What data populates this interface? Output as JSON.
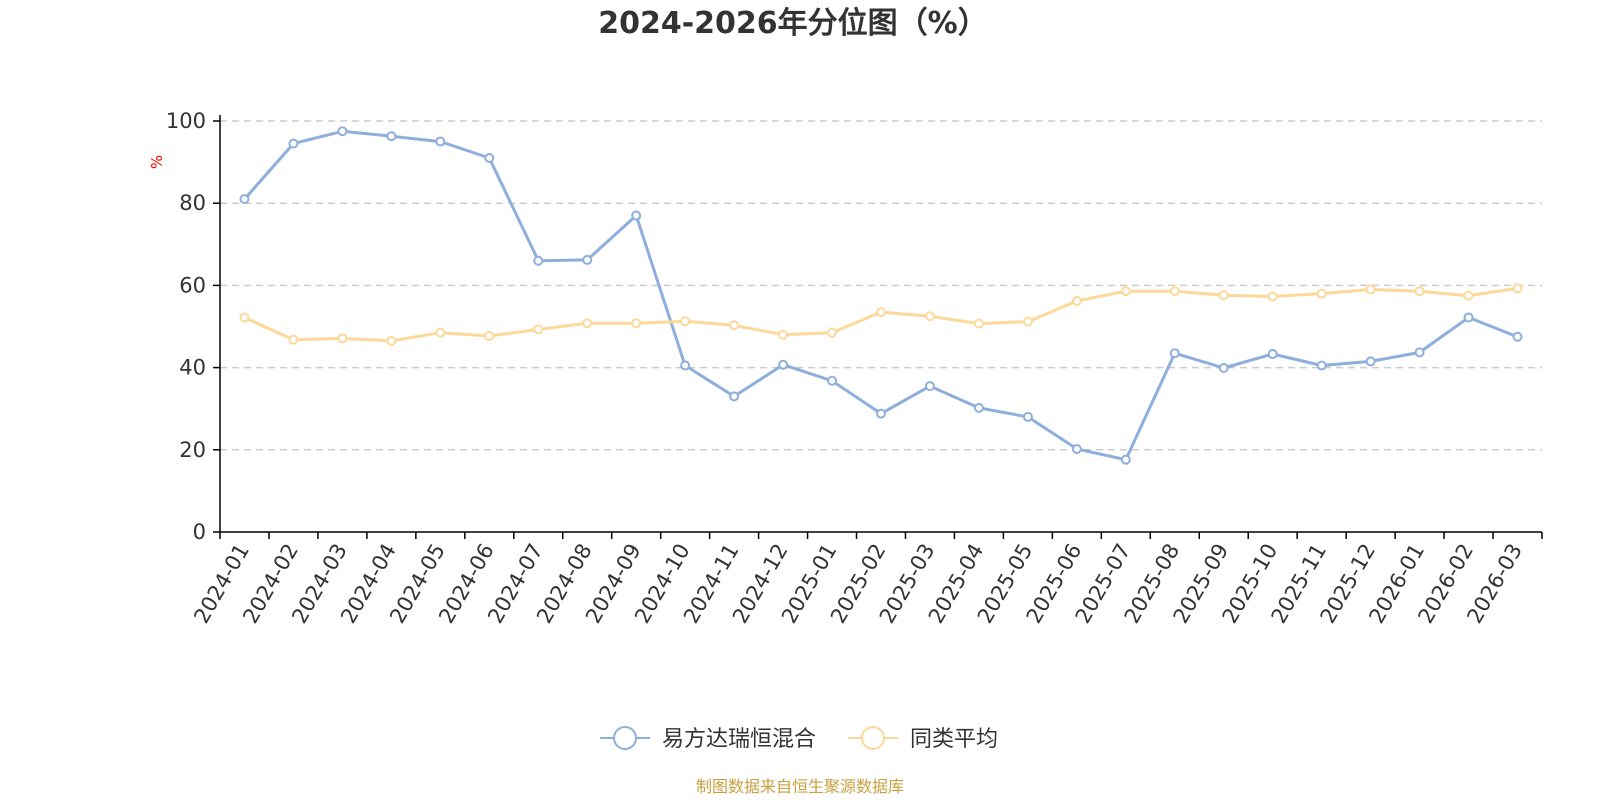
{
  "title": "2024-2026年分位图（%）",
  "source": "制图数据来自恒生聚源数据库",
  "colors": {
    "series1": "#8eaedb",
    "series2": "#fcd999",
    "unit": "#ff0000",
    "source": "#c8a040"
  },
  "chart_data": {
    "type": "line",
    "title": "2024-2026年分位图（%）",
    "ylabel": "%",
    "xlabel": "",
    "ylim": [
      0,
      100
    ],
    "yticks": [
      0,
      20,
      40,
      60,
      80,
      100
    ],
    "grid": true,
    "legend_position": "bottom-center",
    "categories": [
      "2024-01",
      "2024-02",
      "2024-03",
      "2024-04",
      "2024-05",
      "2024-06",
      "2024-07",
      "2024-08",
      "2024-09",
      "2024-10",
      "2024-11",
      "2024-12",
      "2025-01",
      "2025-02",
      "2025-03",
      "2025-04",
      "2025-05",
      "2025-06",
      "2025-07",
      "2025-08",
      "2025-09",
      "2025-10",
      "2025-11",
      "2025-12",
      "2026-01",
      "2026-02",
      "2026-03"
    ],
    "series": [
      {
        "name": "易方达瑞恒混合",
        "color": "#8eaedb",
        "values": [
          81,
          94.5,
          97.5,
          96.3,
          95,
          91,
          66,
          66.2,
          77,
          40.5,
          33,
          40.7,
          36.8,
          28.8,
          35.5,
          30.2,
          28,
          20.2,
          17.6,
          43.5,
          39.9,
          43.3,
          40.5,
          41.5,
          43.7,
          52.2,
          47.5
        ]
      },
      {
        "name": "同类平均",
        "color": "#fcd999",
        "values": [
          52.2,
          46.8,
          47.1,
          46.5,
          48.5,
          47.7,
          49.3,
          50.8,
          50.8,
          51.3,
          50.3,
          48,
          48.5,
          53.5,
          52.5,
          50.7,
          51.2,
          56.2,
          58.6,
          58.6,
          57.6,
          57.3,
          58,
          59,
          58.6,
          57.5,
          59.3
        ]
      }
    ]
  }
}
